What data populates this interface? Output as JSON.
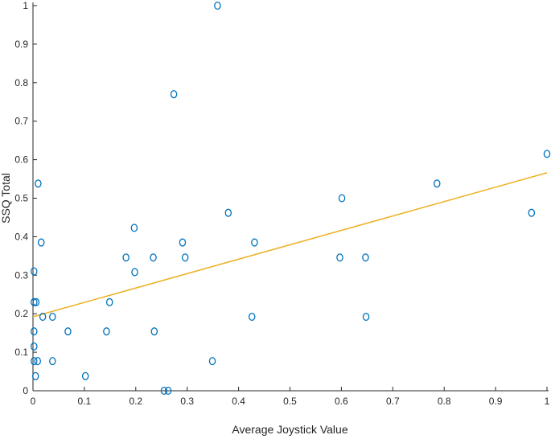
{
  "chart_data": {
    "type": "scatter",
    "title": "",
    "xlabel": "Average Joystick Value",
    "ylabel": "SSQ Total",
    "xlim": [
      0,
      1
    ],
    "ylim": [
      0,
      1
    ],
    "xticks": [
      "0",
      "0.1",
      "0.2",
      "0.3",
      "0.4",
      "0.5",
      "0.6",
      "0.7",
      "0.8",
      "0.9",
      "1"
    ],
    "yticks": [
      "0",
      "0.1",
      "0.2",
      "0.3",
      "0.4",
      "0.5",
      "0.6",
      "0.7",
      "0.8",
      "0.9",
      "1"
    ],
    "grid": false,
    "legend": "none",
    "colors": {
      "points": "#0072BD",
      "fit": "#EDB120",
      "axis": "#262626"
    },
    "series": [
      {
        "points": [
          [
            0.002,
            0.31
          ],
          [
            0.002,
            0.23
          ],
          [
            0.002,
            0.154
          ],
          [
            0.002,
            0.115
          ],
          [
            0.002,
            0.077
          ],
          [
            0.005,
            0.038
          ],
          [
            0.006,
            0.23
          ],
          [
            0.009,
            0.077
          ],
          [
            0.01,
            0.538
          ],
          [
            0.016,
            0.385
          ],
          [
            0.019,
            0.192
          ],
          [
            0.038,
            0.192
          ],
          [
            0.038,
            0.077
          ],
          [
            0.068,
            0.154
          ],
          [
            0.102,
            0.038
          ],
          [
            0.143,
            0.154
          ],
          [
            0.149,
            0.23
          ],
          [
            0.181,
            0.346
          ],
          [
            0.197,
            0.423
          ],
          [
            0.198,
            0.308
          ],
          [
            0.234,
            0.346
          ],
          [
            0.236,
            0.154
          ],
          [
            0.255,
            0.0
          ],
          [
            0.263,
            0.0
          ],
          [
            0.274,
            0.77
          ],
          [
            0.291,
            0.385
          ],
          [
            0.296,
            0.346
          ],
          [
            0.349,
            0.077
          ],
          [
            0.359,
            1.0
          ],
          [
            0.38,
            0.462
          ],
          [
            0.426,
            0.192
          ],
          [
            0.431,
            0.385
          ],
          [
            0.597,
            0.346
          ],
          [
            0.601,
            0.5
          ],
          [
            0.647,
            0.346
          ],
          [
            0.648,
            0.192
          ],
          [
            0.786,
            0.538
          ],
          [
            0.97,
            0.462
          ],
          [
            1.0,
            0.615
          ]
        ]
      }
    ],
    "fit_line": {
      "x": [
        0,
        1
      ],
      "y": [
        0.192,
        0.566
      ]
    }
  }
}
